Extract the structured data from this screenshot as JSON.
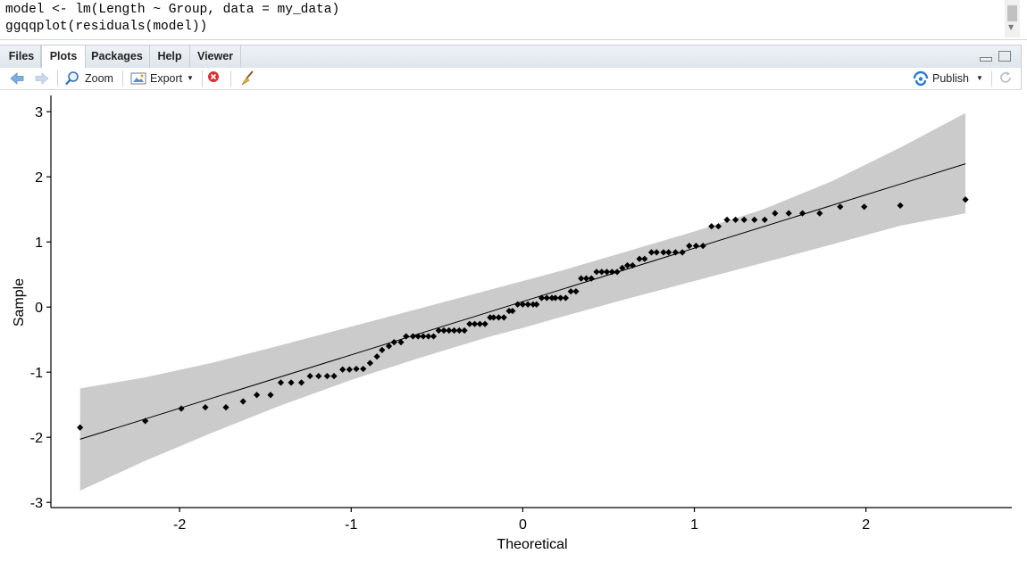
{
  "console": {
    "line1": "model <- lm(Length ~ Group, data = my_data)",
    "line2": "ggqqplot(residuals(model))"
  },
  "tabs": [
    {
      "label": "Files",
      "active": false
    },
    {
      "label": "Plots",
      "active": true
    },
    {
      "label": "Packages",
      "active": false
    },
    {
      "label": "Help",
      "active": false
    },
    {
      "label": "Viewer",
      "active": false
    }
  ],
  "toolbar": {
    "back_icon": "back-arrow-icon",
    "forward_icon": "forward-arrow-icon",
    "zoom_label": "Zoom",
    "export_label": "Export",
    "remove_icon": "remove-plot-icon",
    "clear_icon": "broom-icon",
    "publish_label": "Publish",
    "refresh_icon": "refresh-icon"
  },
  "colors": {
    "band": "#cbcbcb",
    "points": "#000000",
    "line": "#000000",
    "remove_red": "#d9302c",
    "publish_blue": "#2b7bd0"
  },
  "chart_data": {
    "type": "scatter",
    "title": "",
    "xlabel": "Theoretical",
    "ylabel": "Sample",
    "xlim": [
      -2.75,
      2.85
    ],
    "ylim": [
      -3.08,
      3.25
    ],
    "xticks": [
      -2,
      -1,
      0,
      1,
      2
    ],
    "yticks": [
      -3,
      -2,
      -1,
      0,
      1,
      2,
      3
    ],
    "grid": false,
    "reference_line": {
      "x": [
        -2.58,
        2.58
      ],
      "y": [
        -2.03,
        2.2
      ]
    },
    "confidence_band": {
      "x": [
        -2.58,
        -2.2,
        -1.8,
        -1.4,
        -1.0,
        -0.6,
        -0.2,
        0.0,
        0.2,
        0.6,
        1.0,
        1.4,
        1.8,
        2.2,
        2.58
      ],
      "upper": [
        -1.25,
        -1.08,
        -0.85,
        -0.58,
        -0.3,
        -0.02,
        0.26,
        0.4,
        0.54,
        0.85,
        1.16,
        1.5,
        1.93,
        2.45,
        2.98
      ],
      "lower": [
        -2.82,
        -2.36,
        -1.92,
        -1.5,
        -1.12,
        -0.78,
        -0.46,
        -0.32,
        -0.17,
        0.12,
        0.4,
        0.68,
        0.96,
        1.25,
        1.44
      ]
    },
    "points": {
      "x": [
        -2.58,
        -2.2,
        -1.99,
        -1.85,
        -1.73,
        -1.63,
        -1.55,
        -1.47,
        -1.41,
        -1.35,
        -1.29,
        -1.24,
        -1.19,
        -1.14,
        -1.1,
        -1.05,
        -1.01,
        -0.97,
        -0.93,
        -0.89,
        -0.85,
        -0.82,
        -0.78,
        -0.75,
        -0.71,
        -0.68,
        -0.64,
        -0.61,
        -0.58,
        -0.55,
        -0.52,
        -0.49,
        -0.46,
        -0.43,
        -0.4,
        -0.37,
        -0.34,
        -0.31,
        -0.28,
        -0.25,
        -0.22,
        -0.19,
        -0.17,
        -0.14,
        -0.11,
        -0.08,
        -0.06,
        -0.03,
        0.0,
        0.03,
        0.06,
        0.08,
        0.11,
        0.14,
        0.17,
        0.19,
        0.22,
        0.25,
        0.28,
        0.31,
        0.34,
        0.37,
        0.4,
        0.43,
        0.46,
        0.49,
        0.52,
        0.55,
        0.58,
        0.61,
        0.64,
        0.68,
        0.71,
        0.75,
        0.78,
        0.82,
        0.85,
        0.89,
        0.93,
        0.97,
        1.01,
        1.05,
        1.1,
        1.14,
        1.19,
        1.24,
        1.29,
        1.35,
        1.41,
        1.47,
        1.55,
        1.63,
        1.73,
        1.85,
        1.99,
        2.2,
        2.58
      ],
      "y": [
        -1.85,
        -1.75,
        -1.56,
        -1.54,
        -1.54,
        -1.45,
        -1.35,
        -1.35,
        -1.16,
        -1.16,
        -1.16,
        -1.06,
        -1.06,
        -1.06,
        -1.06,
        -0.96,
        -0.96,
        -0.95,
        -0.95,
        -0.86,
        -0.76,
        -0.66,
        -0.6,
        -0.54,
        -0.54,
        -0.45,
        -0.45,
        -0.45,
        -0.45,
        -0.45,
        -0.45,
        -0.36,
        -0.36,
        -0.36,
        -0.36,
        -0.36,
        -0.36,
        -0.26,
        -0.26,
        -0.26,
        -0.26,
        -0.16,
        -0.16,
        -0.16,
        -0.16,
        -0.06,
        -0.06,
        0.04,
        0.04,
        0.04,
        0.04,
        0.04,
        0.14,
        0.14,
        0.14,
        0.14,
        0.14,
        0.14,
        0.24,
        0.24,
        0.44,
        0.44,
        0.44,
        0.54,
        0.54,
        0.54,
        0.54,
        0.54,
        0.6,
        0.64,
        0.64,
        0.74,
        0.74,
        0.84,
        0.84,
        0.84,
        0.84,
        0.84,
        0.84,
        0.94,
        0.94,
        0.94,
        1.24,
        1.24,
        1.34,
        1.34,
        1.34,
        1.34,
        1.34,
        1.44,
        1.44,
        1.44,
        1.44,
        1.54,
        1.54,
        1.56,
        1.65
      ]
    }
  }
}
